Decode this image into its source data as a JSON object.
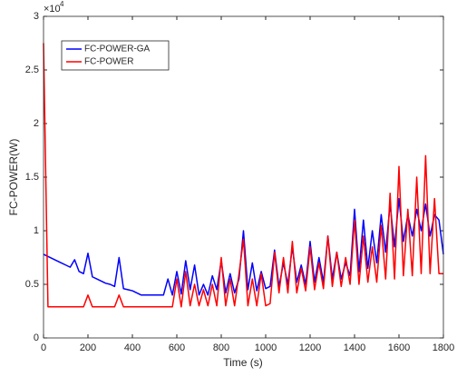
{
  "chart_data": {
    "type": "line",
    "xlabel": "Time (s)",
    "ylabel": "FC-POWER(W)",
    "y_multiplier": {
      "base": "×10",
      "exponent": "4"
    },
    "x": [
      0,
      20,
      40,
      60,
      80,
      100,
      120,
      140,
      160,
      180,
      200,
      220,
      240,
      260,
      280,
      300,
      320,
      340,
      360,
      380,
      400,
      420,
      440,
      460,
      480,
      500,
      520,
      540,
      560,
      580,
      600,
      620,
      640,
      660,
      680,
      700,
      720,
      740,
      760,
      780,
      800,
      820,
      840,
      860,
      880,
      900,
      920,
      940,
      960,
      980,
      1000,
      1020,
      1040,
      1060,
      1080,
      1100,
      1120,
      1140,
      1160,
      1180,
      1200,
      1220,
      1240,
      1260,
      1280,
      1300,
      1320,
      1340,
      1360,
      1380,
      1400,
      1420,
      1440,
      1460,
      1480,
      1500,
      1520,
      1540,
      1560,
      1580,
      1600,
      1620,
      1640,
      1660,
      1680,
      1700,
      1720,
      1740,
      1760,
      1780,
      1800
    ],
    "series": [
      {
        "name": "FC-POWER-GA",
        "color": "#0000ff",
        "values": [
          0.78,
          0.76,
          0.74,
          0.72,
          0.7,
          0.68,
          0.66,
          0.73,
          0.62,
          0.6,
          0.79,
          0.57,
          0.55,
          0.53,
          0.51,
          0.5,
          0.48,
          0.75,
          0.46,
          0.45,
          0.44,
          0.42,
          0.4,
          0.4,
          0.4,
          0.4,
          0.4,
          0.4,
          0.55,
          0.4,
          0.62,
          0.41,
          0.72,
          0.45,
          0.68,
          0.4,
          0.5,
          0.4,
          0.58,
          0.45,
          0.72,
          0.42,
          0.6,
          0.42,
          0.55,
          1.0,
          0.45,
          0.7,
          0.44,
          0.62,
          0.46,
          0.48,
          0.82,
          0.48,
          0.7,
          0.5,
          0.85,
          0.52,
          0.68,
          0.5,
          0.9,
          0.52,
          0.75,
          0.52,
          0.95,
          0.55,
          0.8,
          0.55,
          0.7,
          0.58,
          1.2,
          0.62,
          1.1,
          0.65,
          1.0,
          0.7,
          1.15,
          0.8,
          1.25,
          0.85,
          1.3,
          0.9,
          1.15,
          0.95,
          1.2,
          1.0,
          1.25,
          0.95,
          1.15,
          1.1,
          0.78
        ]
      },
      {
        "name": "FC-POWER",
        "color": "#ff0000",
        "values": [
          2.75,
          0.29,
          0.29,
          0.29,
          0.29,
          0.29,
          0.29,
          0.29,
          0.29,
          0.29,
          0.4,
          0.29,
          0.29,
          0.29,
          0.29,
          0.29,
          0.29,
          0.4,
          0.29,
          0.29,
          0.29,
          0.29,
          0.29,
          0.29,
          0.29,
          0.29,
          0.29,
          0.29,
          0.29,
          0.29,
          0.55,
          0.29,
          0.62,
          0.3,
          0.5,
          0.3,
          0.45,
          0.3,
          0.5,
          0.3,
          0.75,
          0.3,
          0.55,
          0.3,
          0.6,
          0.92,
          0.3,
          0.55,
          0.3,
          0.6,
          0.3,
          0.32,
          0.8,
          0.42,
          0.75,
          0.42,
          0.9,
          0.42,
          0.65,
          0.44,
          0.85,
          0.45,
          0.7,
          0.46,
          0.95,
          0.48,
          0.8,
          0.48,
          0.75,
          0.5,
          1.1,
          0.5,
          0.95,
          0.52,
          0.85,
          0.52,
          1.05,
          0.55,
          1.35,
          0.55,
          1.6,
          0.58,
          1.2,
          0.58,
          1.5,
          0.6,
          1.7,
          0.6,
          1.3,
          0.6,
          0.6
        ]
      }
    ],
    "xlim": [
      0,
      1800
    ],
    "xticks": [
      0,
      200,
      400,
      600,
      800,
      1000,
      1200,
      1400,
      1600,
      1800
    ],
    "ylim": [
      0,
      3
    ],
    "yticks": [
      0,
      0.5,
      1,
      1.5,
      2,
      2.5,
      3
    ],
    "grid": false,
    "legend": "upper left"
  }
}
